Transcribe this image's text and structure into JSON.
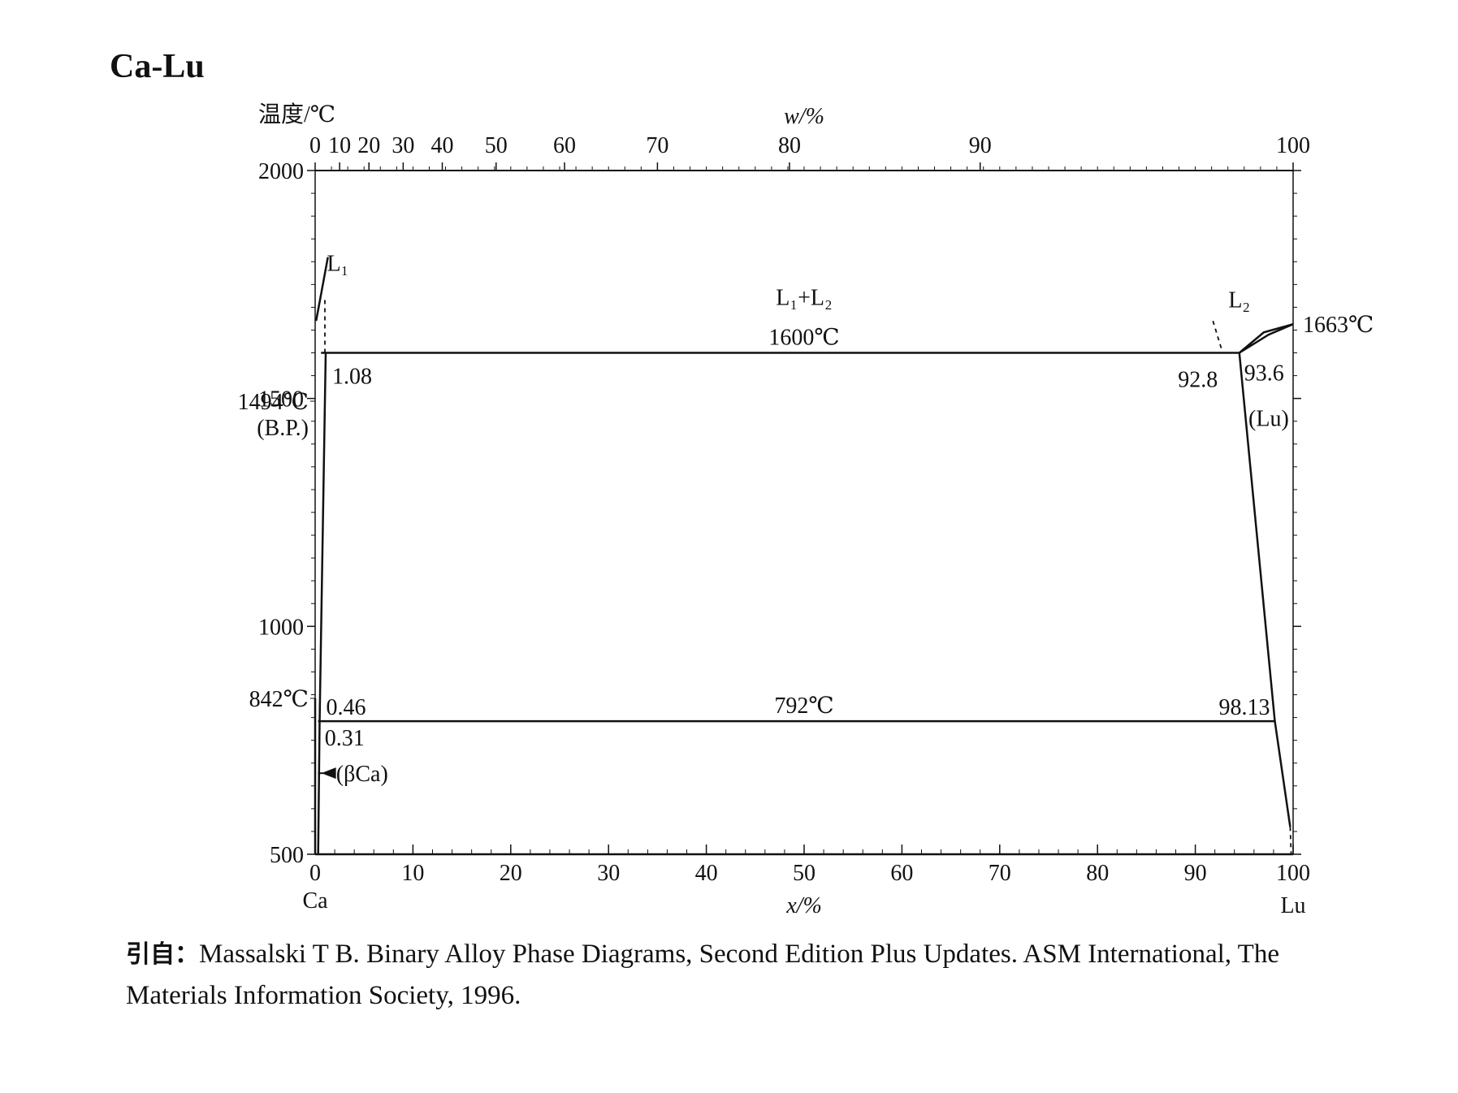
{
  "title": "Ca-Lu",
  "chart_data": {
    "type": "phase-diagram",
    "title": "Ca-Lu",
    "y_axis": {
      "label": "温度/℃",
      "range": [
        500,
        2000
      ],
      "ticks": [
        500,
        1000,
        1500,
        2000
      ]
    },
    "x_axis": {
      "label": "x/%",
      "range": [
        0,
        100
      ],
      "ticks": [
        0,
        10,
        20,
        30,
        40,
        50,
        60,
        70,
        80,
        90,
        100
      ],
      "left_element": "Ca",
      "right_element": "Lu"
    },
    "top_axis": {
      "label": "w/%",
      "ticks": [
        {
          "label": "0",
          "x_atomic": 0
        },
        {
          "label": "10",
          "x_atomic": 2.5
        },
        {
          "label": "20",
          "x_atomic": 5.5
        },
        {
          "label": "30",
          "x_atomic": 9.0
        },
        {
          "label": "40",
          "x_atomic": 13.0
        },
        {
          "label": "50",
          "x_atomic": 18.5
        },
        {
          "label": "60",
          "x_atomic": 25.5
        },
        {
          "label": "70",
          "x_atomic": 35.0
        },
        {
          "label": "80",
          "x_atomic": 48.5
        },
        {
          "label": "90",
          "x_atomic": 68.0
        },
        {
          "label": "100",
          "x_atomic": 100
        }
      ]
    },
    "left_annotations": [
      {
        "lines": [
          "1494℃",
          "(B.P.)"
        ],
        "temperature": 1494
      },
      {
        "lines": [
          "842℃"
        ],
        "temperature": 842
      }
    ],
    "isotherms": [
      {
        "label": "1600℃",
        "temperature": 1600,
        "x_from": 0.6,
        "x_to": 94.5
      },
      {
        "label": "792℃",
        "temperature": 792,
        "x_from": 0.3,
        "x_to": 98.13
      }
    ],
    "composition_labels": [
      {
        "label": "1.08",
        "x": 1.08,
        "temperature": 1600
      },
      {
        "label": "92.8",
        "x": 92.8,
        "temperature": 1600
      },
      {
        "label": "93.6",
        "x": 93.6,
        "temperature": 1600
      },
      {
        "label": "0.46",
        "x": 0.46,
        "temperature": 792
      },
      {
        "label": "0.31",
        "x": 0.31,
        "temperature": 792
      },
      {
        "label": "98.13",
        "x": 98.13,
        "temperature": 792
      }
    ],
    "phase_labels": [
      "L₁",
      "L₁+L₂",
      "L₂",
      "(Lu)",
      "(βCa)"
    ],
    "melting_point": {
      "label": "1663℃",
      "x": 100,
      "temperature": 1663
    },
    "boundaries": [
      {
        "name": "L1 liquidus",
        "style": "solid",
        "points": [
          [
            0.1,
            1670
          ],
          [
            1.3,
            1810
          ]
        ]
      },
      {
        "name": "L1 dashed",
        "style": "dashed",
        "points": [
          [
            1.0,
            1600
          ],
          [
            1.0,
            1720
          ]
        ]
      },
      {
        "name": "Ca-rich solvus",
        "style": "solid",
        "points": [
          [
            1.08,
            1600
          ],
          [
            0.46,
            792
          ],
          [
            0.31,
            500
          ]
        ]
      },
      {
        "name": "Ca axis boundary",
        "style": "solid",
        "points": [
          [
            0,
            500
          ],
          [
            0,
            842
          ]
        ]
      },
      {
        "name": "L2 liquidus",
        "style": "solid",
        "points": [
          [
            94.5,
            1600
          ],
          [
            97.0,
            1645
          ],
          [
            100,
            1663
          ]
        ]
      },
      {
        "name": "Lu solidus",
        "style": "solid",
        "points": [
          [
            94.5,
            1600
          ],
          [
            97.5,
            1640
          ],
          [
            100,
            1663
          ]
        ]
      },
      {
        "name": "L2 dashed",
        "style": "dashed",
        "points": [
          [
            91.8,
            1670
          ],
          [
            92.8,
            1600
          ]
        ]
      },
      {
        "name": "Lu solvus",
        "style": "solid",
        "points": [
          [
            94.5,
            1600
          ],
          [
            98.13,
            792
          ],
          [
            99.7,
            560
          ]
        ]
      },
      {
        "name": "Lu solvus dashed",
        "style": "dashed",
        "points": [
          [
            99.7,
            560
          ],
          [
            99.8,
            500
          ]
        ]
      }
    ]
  },
  "citation": {
    "label": "引自：",
    "text": "Massalski T B. Binary Alloy Phase Diagrams, Second Edition Plus Updates. ASM International, The",
    "line2": "Materials Information Society, 1996."
  }
}
